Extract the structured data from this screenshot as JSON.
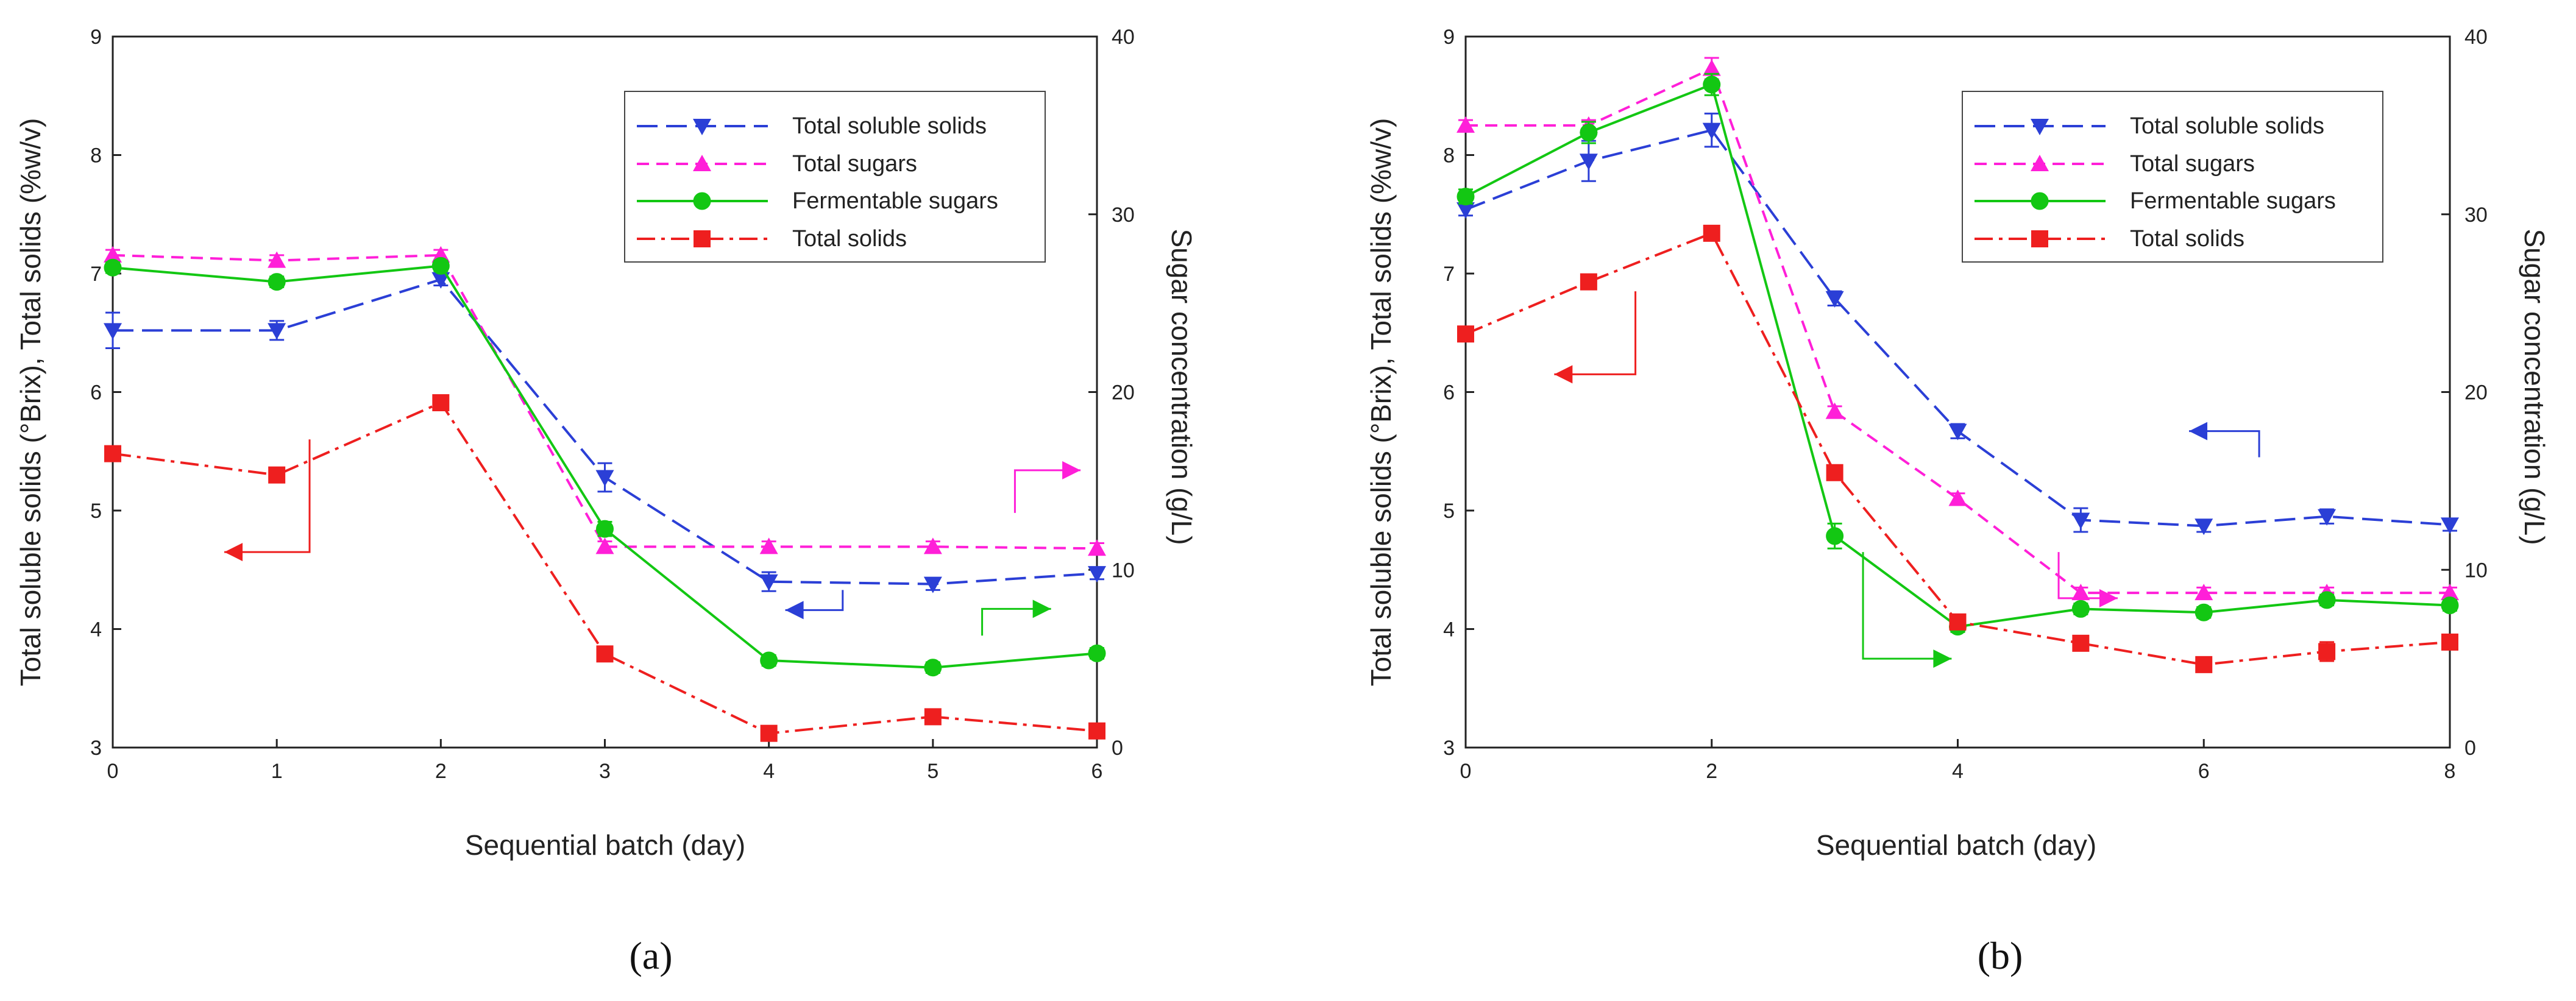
{
  "chart_data": [
    {
      "type": "line",
      "panel_label": "(a)",
      "xlabel": "Sequential batch (day)",
      "ylabel": "Total soluble solids (°Brix), Total solids (%w/v)",
      "y2label": "Sugar concentration (g/L)",
      "xlim": [
        0,
        6
      ],
      "xticks": [
        "0",
        "1",
        "2",
        "3",
        "4",
        "5",
        "6"
      ],
      "ylim": [
        3,
        9
      ],
      "yticks": [
        "3",
        "4",
        "5",
        "6",
        "7",
        "8",
        "9"
      ],
      "y2lim": [
        0,
        40
      ],
      "y2ticks": [
        "0",
        "10",
        "20",
        "30",
        "40"
      ],
      "legend_position": "top-right",
      "series": [
        {
          "name": "Total soluble solids",
          "axis": "left",
          "marker": "triangle-down",
          "dash": "dash-long",
          "color": "#2b3fd6",
          "x": [
            0,
            1,
            2,
            3,
            4,
            5,
            6
          ],
          "y": [
            6.52,
            6.52,
            6.95,
            5.28,
            4.4,
            4.38,
            4.47
          ],
          "err": [
            0.15,
            0.08,
            0.05,
            0.12,
            0.08,
            0.05,
            0.05
          ]
        },
        {
          "name": "Total sugars",
          "axis": "right",
          "marker": "triangle-up",
          "dash": "dash-short",
          "color": "#ff1fd8",
          "x": [
            0,
            1,
            2,
            3,
            4,
            5,
            6
          ],
          "y": [
            27.7,
            27.4,
            27.7,
            11.3,
            11.3,
            11.3,
            11.2
          ],
          "err": [
            0.3,
            0.3,
            0.3,
            0.3,
            0.3,
            0.3,
            0.3
          ]
        },
        {
          "name": "Fermentable sugars",
          "axis": "right",
          "marker": "circle",
          "dash": "solid",
          "color": "#13c713",
          "x": [
            0,
            1,
            2,
            3,
            4,
            5,
            6
          ],
          "y": [
            27.0,
            26.2,
            27.1,
            12.3,
            4.9,
            4.5,
            5.3
          ],
          "err": [
            0.3,
            0.3,
            0.3,
            0.4,
            0.3,
            0.3,
            0.3
          ]
        },
        {
          "name": "Total solids",
          "axis": "left",
          "marker": "square",
          "dash": "dash-dot",
          "color": "#ee1f1f",
          "x": [
            0,
            1,
            2,
            3,
            4,
            5,
            6
          ],
          "y": [
            5.48,
            5.3,
            5.91,
            3.79,
            3.12,
            3.26,
            3.14
          ],
          "err": [
            0.04,
            0.04,
            0.04,
            0.04,
            0.04,
            0.04,
            0.04
          ]
        }
      ],
      "axis_arrows": [
        {
          "series": "Total solids",
          "points": [
            [
              1.2,
              5.6
            ],
            [
              1.2,
              4.65
            ],
            [
              0.68,
              4.65
            ]
          ],
          "color": "#ee1f1f"
        },
        {
          "series": "Total sugars",
          "points": [
            [
              5.5,
              13.2
            ],
            [
              5.5,
              15.6
            ],
            [
              5.9,
              15.6
            ]
          ],
          "color": "#ff1fd8"
        },
        {
          "series": "Total soluble solids",
          "points": [
            [
              4.45,
              4.33
            ],
            [
              4.45,
              4.16
            ],
            [
              4.1,
              4.16
            ]
          ],
          "color": "#2b3fd6"
        },
        {
          "series": "Fermentable sugars",
          "points": [
            [
              5.3,
              6.3
            ],
            [
              5.3,
              7.8
            ],
            [
              5.72,
              7.8
            ]
          ],
          "color": "#13c713"
        }
      ]
    },
    {
      "type": "line",
      "panel_label": "(b)",
      "xlabel": "Sequential batch (day)",
      "ylabel": "Total soluble solids (°Brix), Total solids (%w/v)",
      "y2label": "Sugar concentration (g/L)",
      "xlim": [
        0,
        8
      ],
      "xticks": [
        "0",
        "2",
        "4",
        "6",
        "8"
      ],
      "ylim": [
        3,
        9
      ],
      "yticks": [
        "3",
        "4",
        "5",
        "6",
        "7",
        "8",
        "9"
      ],
      "y2lim": [
        0,
        40
      ],
      "y2ticks": [
        "0",
        "10",
        "20",
        "30",
        "40"
      ],
      "legend_position": "top-right",
      "series": [
        {
          "name": "Total soluble solids",
          "axis": "left",
          "marker": "triangle-down",
          "dash": "dash-long",
          "color": "#2b3fd6",
          "x": [
            0,
            1,
            2,
            3,
            4,
            5,
            6,
            7,
            8
          ],
          "y": [
            7.54,
            7.95,
            8.21,
            6.79,
            5.67,
            4.92,
            4.87,
            4.95,
            4.88
          ],
          "err": [
            0.05,
            0.17,
            0.14,
            0.06,
            0.06,
            0.1,
            0.05,
            0.06,
            0.05
          ]
        },
        {
          "name": "Total sugars",
          "axis": "right",
          "marker": "triangle-up",
          "dash": "dash-short",
          "color": "#ff1fd8",
          "x": [
            0,
            1,
            2,
            3,
            4,
            5,
            6,
            7,
            8
          ],
          "y": [
            35.0,
            35.0,
            38.2,
            18.9,
            14.0,
            8.7,
            8.7,
            8.7,
            8.7
          ],
          "err": [
            0.3,
            0.3,
            0.6,
            0.3,
            0.3,
            0.3,
            0.3,
            0.3,
            0.3
          ]
        },
        {
          "name": "Fermentable sugars",
          "axis": "right",
          "marker": "circle",
          "dash": "solid",
          "color": "#13c713",
          "x": [
            0,
            1,
            2,
            3,
            4,
            5,
            6,
            7,
            8
          ],
          "y": [
            31.0,
            34.6,
            37.3,
            11.9,
            6.8,
            7.8,
            7.6,
            8.3,
            8.0
          ],
          "err": [
            0.4,
            0.6,
            0.6,
            0.7,
            0.3,
            0.3,
            0.3,
            0.3,
            0.3
          ]
        },
        {
          "name": "Total solids",
          "axis": "left",
          "marker": "square",
          "dash": "dash-dot",
          "color": "#ee1f1f",
          "x": [
            0,
            1,
            2,
            3,
            4,
            5,
            6,
            7,
            8
          ],
          "y": [
            6.49,
            6.93,
            7.34,
            5.32,
            4.06,
            3.88,
            3.7,
            3.81,
            3.89
          ],
          "err": [
            0.04,
            0.04,
            0.04,
            0.04,
            0.04,
            0.04,
            0.04,
            0.08,
            0.04
          ]
        }
      ],
      "axis_arrows": [
        {
          "series": "Total solids",
          "points": [
            [
              1.38,
              6.85
            ],
            [
              1.38,
              6.15
            ],
            [
              0.72,
              6.15
            ]
          ],
          "color": "#ee1f1f"
        },
        {
          "series": "Total soluble solids",
          "points": [
            [
              6.45,
              5.45
            ],
            [
              6.45,
              5.67
            ],
            [
              5.88,
              5.67
            ]
          ],
          "color": "#2b3fd6"
        },
        {
          "series": "Total sugars",
          "points": [
            [
              4.82,
              11.0
            ],
            [
              4.82,
              8.4
            ],
            [
              5.3,
              8.4
            ]
          ],
          "color": "#ff1fd8"
        },
        {
          "series": "Fermentable sugars",
          "points": [
            [
              3.23,
              11.0
            ],
            [
              3.23,
              5.0
            ],
            [
              3.95,
              5.0
            ]
          ],
          "color": "#13c713"
        }
      ]
    }
  ]
}
